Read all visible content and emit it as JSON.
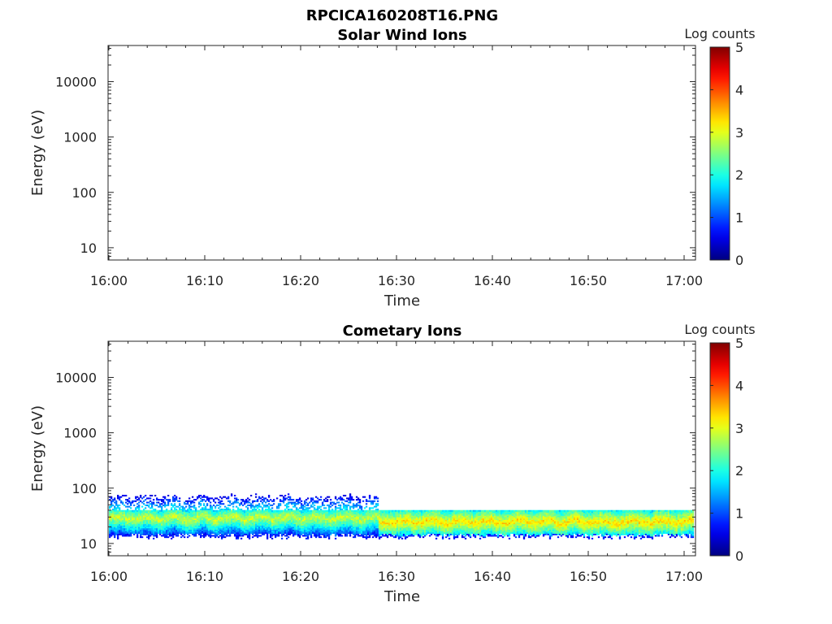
{
  "figure": {
    "title": "RPCICA160208T16.PNG"
  },
  "chart_data": [
    {
      "type": "heatmap",
      "title": "Solar Wind Ions",
      "xlabel": "Time",
      "ylabel": "Energy (eV)",
      "x_ticks": [
        "16:00",
        "16:10",
        "16:20",
        "16:30",
        "16:40",
        "16:50",
        "17:00"
      ],
      "x_range_minutes": [
        0,
        61
      ],
      "y_scale": "log",
      "y_ticks": [
        10,
        100,
        1000,
        10000
      ],
      "y_tick_labels": [
        "10",
        "100",
        "1000",
        "10000"
      ],
      "ylim": [
        6,
        45000
      ],
      "colorbar": {
        "label": "Log counts",
        "ticks": [
          "0",
          "1",
          "2",
          "3",
          "4",
          "5"
        ],
        "range": [
          0,
          5
        ],
        "colormap": "jet"
      },
      "bands": []
    },
    {
      "type": "heatmap",
      "title": "Cometary Ions",
      "xlabel": "Time",
      "ylabel": "Energy (eV)",
      "x_ticks": [
        "16:00",
        "16:10",
        "16:20",
        "16:30",
        "16:40",
        "16:50",
        "17:00"
      ],
      "x_range_minutes": [
        0,
        61
      ],
      "y_scale": "log",
      "y_ticks": [
        10,
        100,
        1000,
        10000
      ],
      "y_tick_labels": [
        "10",
        "100",
        "1000",
        "10000"
      ],
      "ylim": [
        6,
        45000
      ],
      "colorbar": {
        "label": "Log counts",
        "ticks": [
          "0",
          "1",
          "2",
          "3",
          "4",
          "5"
        ],
        "range": [
          0,
          5
        ],
        "colormap": "jet"
      },
      "bands": [
        {
          "t_start_min": 0,
          "t_end_min": 28,
          "e_low_eV": 14,
          "e_high_eV": 80,
          "peak_eV": 28,
          "peak_log_counts": 2.9
        },
        {
          "t_start_min": 28,
          "t_end_min": 61,
          "e_low_eV": 14,
          "e_high_eV": 40,
          "peak_eV": 24,
          "peak_log_counts": 3.3
        }
      ]
    }
  ]
}
